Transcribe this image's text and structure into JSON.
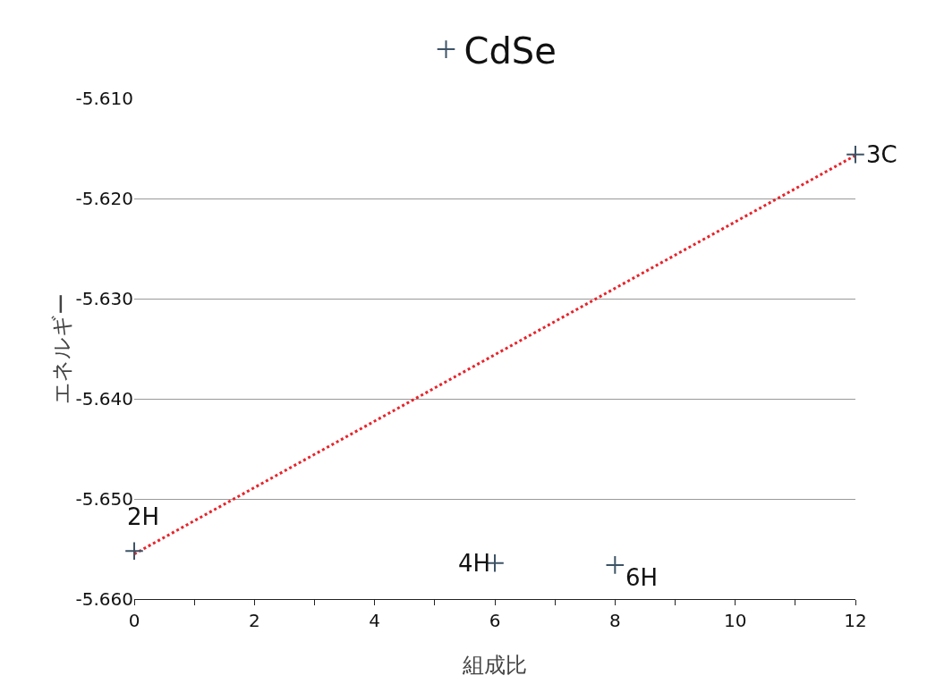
{
  "chart_data": {
    "type": "scatter",
    "xlabel": "組成比",
    "ylabel": "エネルギー",
    "x": [
      0,
      6,
      8,
      12
    ],
    "series": [
      {
        "name": "CdSe",
        "color": "#3d5366",
        "values": [
          -5.6552,
          -5.6564,
          -5.6566,
          -5.6156
        ]
      },
      {
        "type": "line",
        "color": "#e8232a",
        "line_style": "dotted",
        "marker": "none",
        "x": [
          0,
          12
        ],
        "values": [
          -5.6555,
          -5.6157
        ]
      }
    ],
    "marker": "cross",
    "xlim": [
      0,
      12
    ],
    "ylim": [
      -5.66,
      -5.61
    ],
    "xticks": [
      0,
      {
        "value": 1,
        "label": null
      },
      2,
      {
        "value": 3,
        "label": null
      },
      4,
      {
        "value": 5,
        "label": null
      },
      6,
      {
        "value": 7,
        "label": null
      },
      8,
      {
        "value": 9,
        "label": null
      },
      10,
      {
        "value": 11,
        "label": null
      },
      12
    ],
    "yticks": [
      {
        "value": -5.66,
        "label": "-5.660"
      },
      {
        "value": -5.65,
        "label": "-5.650"
      },
      {
        "value": -5.64,
        "label": "-5.640"
      },
      {
        "value": -5.63,
        "label": "-5.630"
      },
      {
        "value": -5.62,
        "label": "-5.620"
      },
      {
        "value": -5.61,
        "label": "-5.610"
      }
    ],
    "grid": "y",
    "legend": "top",
    "annotations": [
      {
        "text": "2H",
        "x": 0,
        "y": -5.6552
      },
      {
        "text": "4H",
        "x": 6,
        "y": -5.6564
      },
      {
        "text": "6H",
        "x": 8,
        "y": -5.6566
      },
      {
        "text": "3C",
        "x": 12,
        "y": -5.6156
      }
    ]
  }
}
